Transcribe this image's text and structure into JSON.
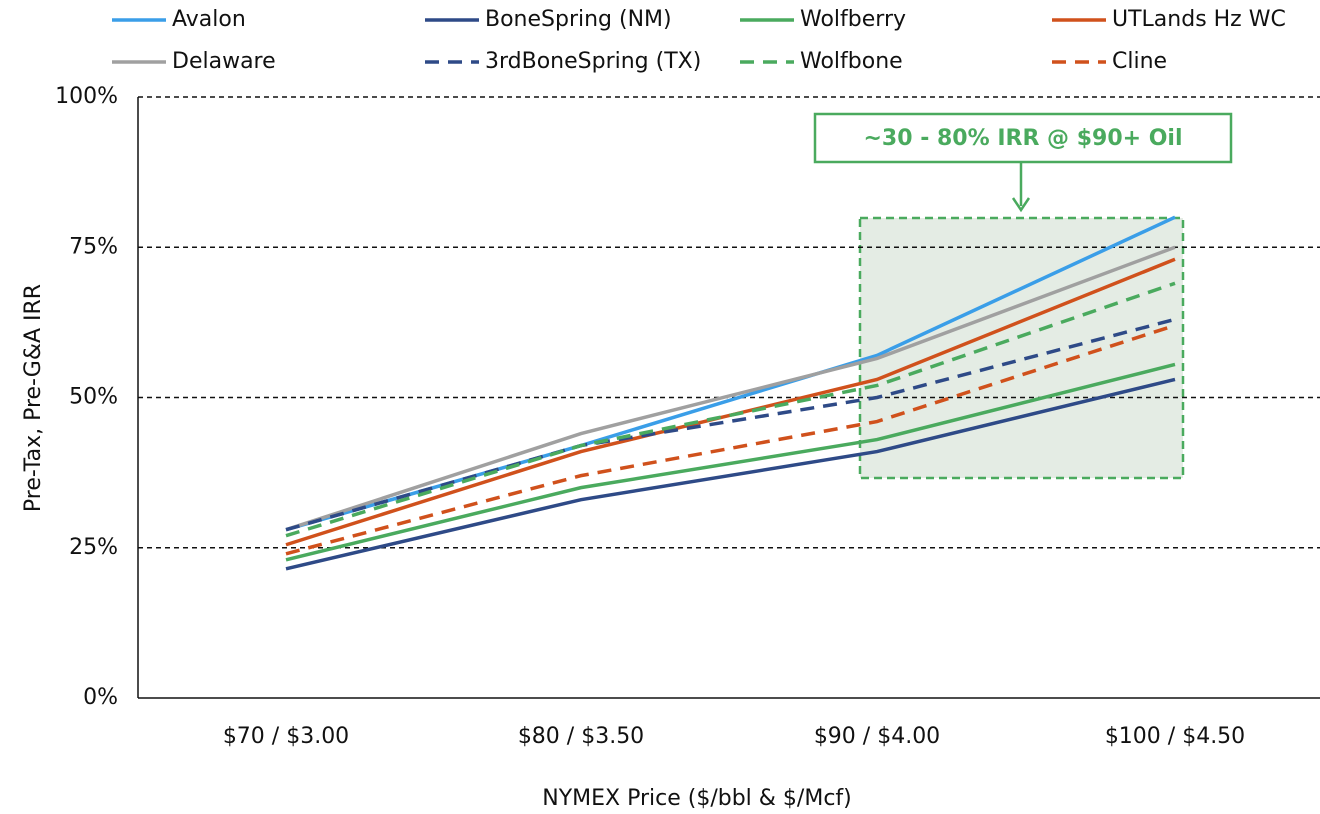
{
  "chart_data": {
    "type": "line",
    "xlabel": "NYMEX Price ($/bbl & $/Mcf)",
    "ylabel": "Pre-Tax, Pre-G&A IRR",
    "annotation": "~30 - 80% IRR @ $90+ Oil",
    "categories": [
      "$70 / $3.00",
      "$80 / $3.50",
      "$90 / $4.00",
      "$100 / $4.50"
    ],
    "ylim": [
      0,
      100
    ],
    "yticks": [
      {
        "value": 0,
        "label": "0%"
      },
      {
        "value": 25,
        "label": "25%"
      },
      {
        "value": 50,
        "label": "50%"
      },
      {
        "value": 75,
        "label": "75%"
      },
      {
        "value": 100,
        "label": "100%"
      }
    ],
    "grid": true,
    "legend": "top",
    "series": [
      {
        "name": "Avalon",
        "color": "#3a9ee8",
        "style": "solid",
        "values": [
          28,
          42,
          57,
          80
        ]
      },
      {
        "name": "BoneSpring (NM)",
        "color": "#2e4a87",
        "style": "solid",
        "values": [
          21.5,
          33,
          41,
          53
        ]
      },
      {
        "name": "Wolfberry",
        "color": "#4aaa5e",
        "style": "solid",
        "values": [
          23,
          35,
          43,
          55.5
        ]
      },
      {
        "name": "UTLands Hz WC",
        "color": "#d0511c",
        "style": "solid",
        "values": [
          25.5,
          41,
          53,
          73
        ]
      },
      {
        "name": "Delaware",
        "color": "#a0a0a0",
        "style": "solid",
        "values": [
          28,
          44,
          56.5,
          75
        ]
      },
      {
        "name": "3rdBoneSpring (TX)",
        "color": "#2e4a87",
        "style": "dashed",
        "values": [
          28,
          42,
          50,
          63
        ]
      },
      {
        "name": "Wolfbone",
        "color": "#4aaa5e",
        "style": "dashed",
        "values": [
          27,
          42,
          52,
          69
        ]
      },
      {
        "name": "Cline",
        "color": "#d0511c",
        "style": "dashed",
        "values": [
          24,
          37,
          46,
          62
        ]
      }
    ]
  }
}
